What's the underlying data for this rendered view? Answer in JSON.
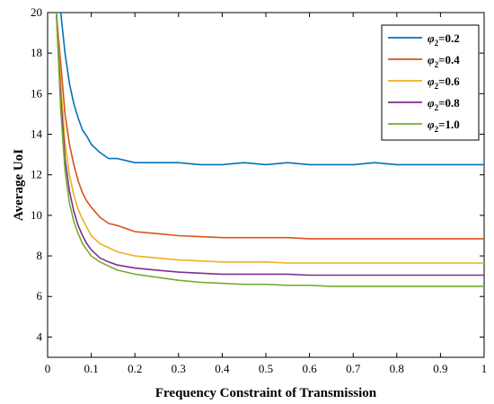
{
  "chart_data": {
    "type": "line",
    "xlabel": "Frequency Constraint of Transmission",
    "ylabel": "Average UoI",
    "xlim": [
      0,
      1
    ],
    "ylim": [
      3,
      20
    ],
    "xticks": [
      "0",
      "0.1",
      "0.2",
      "0.3",
      "0.4",
      "0.5",
      "0.6",
      "0.7",
      "0.8",
      "0.9",
      "1"
    ],
    "yticks": [
      "4",
      "6",
      "8",
      "10",
      "12",
      "14",
      "16",
      "18",
      "20"
    ],
    "grid": false,
    "legend_position": "top-right",
    "x": [
      0.02,
      0.03,
      0.04,
      0.05,
      0.06,
      0.07,
      0.08,
      0.09,
      0.1,
      0.12,
      0.14,
      0.16,
      0.2,
      0.25,
      0.3,
      0.35,
      0.4,
      0.45,
      0.5,
      0.55,
      0.6,
      0.65,
      0.7,
      0.75,
      0.8,
      0.85,
      0.9,
      0.95,
      1.0
    ],
    "series": [
      {
        "legend_main": "φ",
        "legend_sub": "2",
        "legend_value": "=0.2",
        "color": "#0072bd",
        "values": [
          20.0,
          20.0,
          18.0,
          16.5,
          15.5,
          14.8,
          14.2,
          13.9,
          13.5,
          13.1,
          12.8,
          12.8,
          12.6,
          12.6,
          12.6,
          12.5,
          12.5,
          12.6,
          12.5,
          12.6,
          12.5,
          12.5,
          12.5,
          12.6,
          12.5,
          12.5,
          12.5,
          12.5,
          12.5
        ]
      },
      {
        "legend_main": "φ",
        "legend_sub": "2",
        "legend_value": "=0.4",
        "color": "#d95319",
        "values": [
          20.0,
          17.5,
          15.0,
          13.5,
          12.5,
          11.7,
          11.1,
          10.7,
          10.4,
          9.9,
          9.6,
          9.5,
          9.2,
          9.1,
          9.0,
          8.95,
          8.9,
          8.9,
          8.9,
          8.9,
          8.85,
          8.85,
          8.85,
          8.85,
          8.85,
          8.85,
          8.85,
          8.85,
          8.85
        ]
      },
      {
        "legend_main": "φ",
        "legend_sub": "2",
        "legend_value": "=0.6",
        "color": "#edb120",
        "values": [
          20.0,
          16.5,
          13.6,
          12.0,
          11.0,
          10.3,
          9.8,
          9.4,
          9.0,
          8.6,
          8.4,
          8.2,
          8.0,
          7.9,
          7.8,
          7.75,
          7.7,
          7.7,
          7.7,
          7.65,
          7.65,
          7.65,
          7.65,
          7.65,
          7.65,
          7.65,
          7.65,
          7.65,
          7.65
        ]
      },
      {
        "legend_main": "φ",
        "legend_sub": "2",
        "legend_value": "=0.8",
        "color": "#7e2f8e",
        "values": [
          20.0,
          15.8,
          12.8,
          11.2,
          10.2,
          9.5,
          9.0,
          8.6,
          8.3,
          7.9,
          7.7,
          7.55,
          7.4,
          7.3,
          7.2,
          7.15,
          7.1,
          7.1,
          7.1,
          7.1,
          7.05,
          7.05,
          7.05,
          7.05,
          7.05,
          7.05,
          7.05,
          7.05,
          7.05
        ]
      },
      {
        "legend_main": "φ",
        "legend_sub": "2",
        "legend_value": "=1.0",
        "color": "#77ac30",
        "values": [
          20.0,
          15.2,
          12.2,
          10.6,
          9.7,
          9.1,
          8.6,
          8.3,
          8.0,
          7.7,
          7.5,
          7.3,
          7.1,
          6.95,
          6.8,
          6.7,
          6.65,
          6.6,
          6.6,
          6.55,
          6.55,
          6.5,
          6.5,
          6.5,
          6.5,
          6.5,
          6.5,
          6.5,
          6.5
        ]
      }
    ]
  }
}
